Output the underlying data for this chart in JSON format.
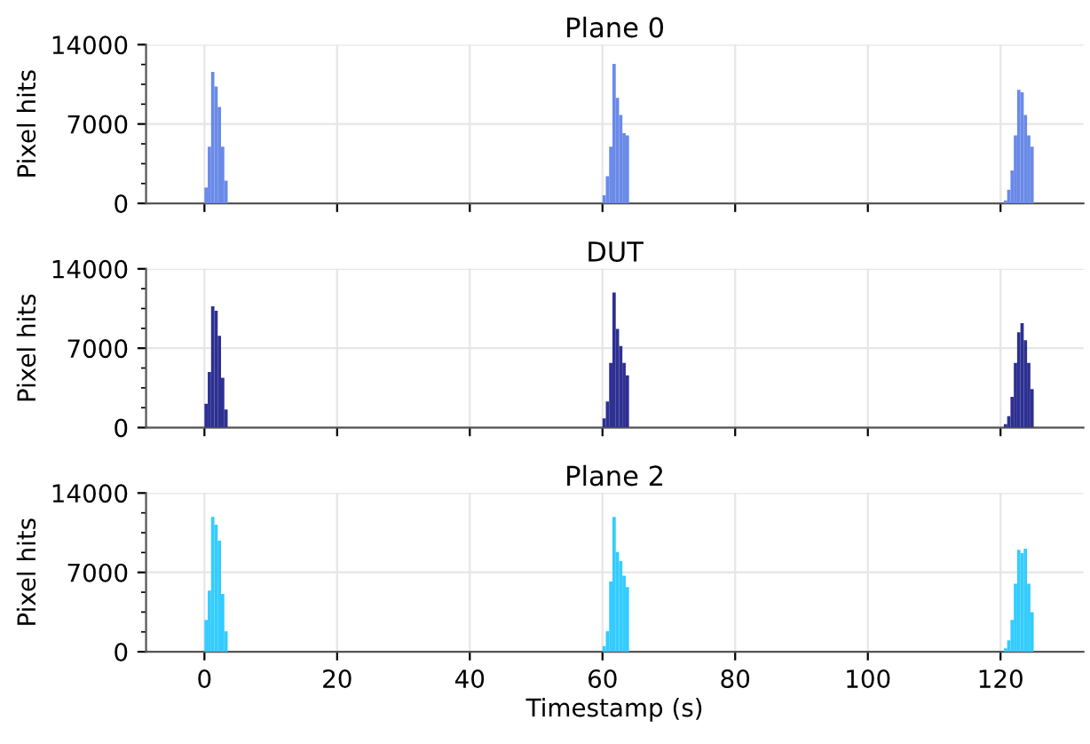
{
  "chart_data": [
    {
      "type": "histogram",
      "title": "Plane 0",
      "ylabel": "Pixel hits",
      "color": "#6a8ae8",
      "bins": [
        0,
        0.5,
        1,
        1.5,
        2,
        2.5,
        3,
        3.5,
        60,
        60.5,
        61,
        61.5,
        62,
        62.5,
        63,
        63.5,
        64,
        120.5,
        121,
        121.5,
        122,
        122.5,
        123,
        123.5,
        124,
        124.5,
        125
      ],
      "values": [
        1400,
        5000,
        11600,
        10300,
        8500,
        5000,
        2000,
        0,
        700,
        2400,
        5000,
        12300,
        9300,
        7800,
        6200,
        6000,
        0,
        250,
        1200,
        2900,
        6000,
        10000,
        9800,
        7800,
        6000,
        5000
      ],
      "xlim": [
        -8.8,
        132.5
      ],
      "xticks": [
        0,
        20,
        40,
        60,
        80,
        100,
        120
      ],
      "ylim": [
        0,
        14000
      ],
      "yticks": [
        0,
        7000,
        14000
      ],
      "grid": true,
      "tick_labels": "y"
    },
    {
      "type": "histogram",
      "title": "DUT",
      "ylabel": "Pixel hits",
      "color": "#2d3091",
      "bins": [
        0,
        0.5,
        1,
        1.5,
        2,
        2.5,
        3,
        3.5,
        60,
        60.5,
        61,
        61.5,
        62,
        62.5,
        63,
        63.5,
        64,
        120.5,
        121,
        121.5,
        122,
        122.5,
        123,
        123.5,
        124,
        124.5,
        125
      ],
      "values": [
        2100,
        4900,
        10700,
        10300,
        8100,
        4400,
        1600,
        0,
        800,
        2300,
        5700,
        11900,
        8700,
        7200,
        5700,
        4600,
        0,
        300,
        1000,
        2700,
        5700,
        8400,
        9200,
        7700,
        5700,
        3400
      ],
      "xlim": [
        -8.8,
        132.5
      ],
      "xticks": [
        0,
        20,
        40,
        60,
        80,
        100,
        120
      ],
      "ylim": [
        0,
        14000
      ],
      "yticks": [
        0,
        7000,
        14000
      ],
      "grid": true,
      "tick_labels": "y"
    },
    {
      "type": "histogram",
      "title": "Plane 2",
      "ylabel": "Pixel hits",
      "xlabel": "Timestamp (s)",
      "color": "#33ccff",
      "bins": [
        0,
        0.5,
        1,
        1.5,
        2,
        2.5,
        3,
        3.5,
        60,
        60.5,
        61,
        61.5,
        62,
        62.5,
        63,
        63.5,
        64,
        120.5,
        121,
        121.5,
        122,
        122.5,
        123,
        123.5,
        124,
        124.5,
        125
      ],
      "values": [
        2800,
        5400,
        11900,
        11200,
        9800,
        5100,
        1800,
        0,
        500,
        1800,
        6200,
        11900,
        8800,
        8000,
        6700,
        5700,
        0,
        300,
        1000,
        2800,
        6000,
        9000,
        8700,
        9100,
        6000,
        3500
      ],
      "xlim": [
        -8.8,
        132.5
      ],
      "xticks": [
        0,
        20,
        40,
        60,
        80,
        100,
        120
      ],
      "ylim": [
        0,
        14000
      ],
      "yticks": [
        0,
        7000,
        14000
      ],
      "grid": true
    }
  ]
}
